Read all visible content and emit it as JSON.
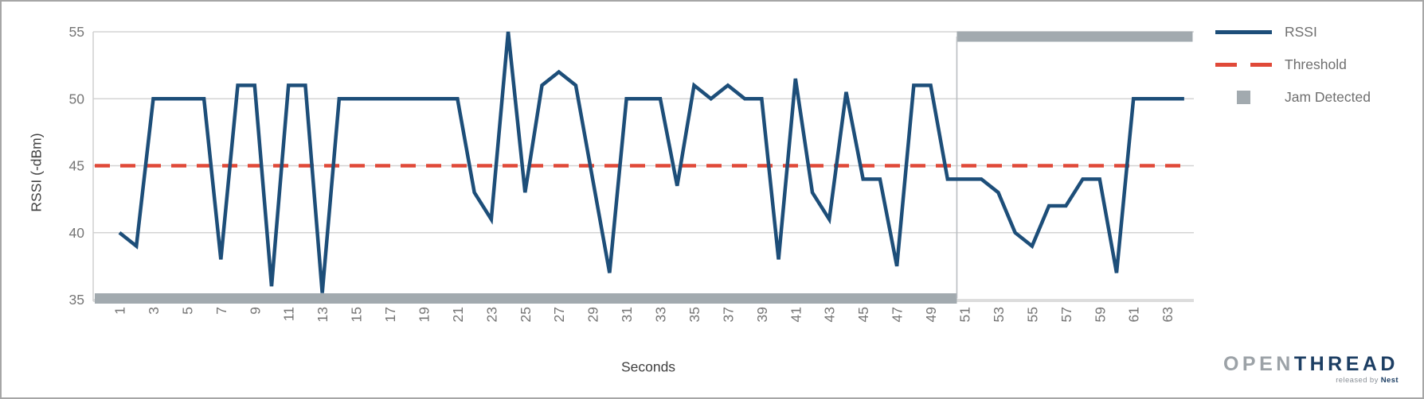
{
  "chart_data": {
    "type": "line",
    "title": "",
    "xlabel": "Seconds",
    "ylabel": "RSSI (-dBm)",
    "xlim": [
      0,
      65
    ],
    "ylim": [
      35,
      55
    ],
    "yticks": [
      35,
      40,
      45,
      50,
      55
    ],
    "xticks": [
      1,
      3,
      5,
      7,
      9,
      11,
      13,
      15,
      17,
      19,
      21,
      23,
      25,
      27,
      29,
      31,
      33,
      35,
      37,
      39,
      41,
      43,
      45,
      47,
      49,
      51,
      53,
      55,
      57,
      59,
      61,
      63
    ],
    "grid": "horizontal",
    "legend_position": "right-outside",
    "x": [
      1,
      2,
      3,
      4,
      5,
      6,
      7,
      8,
      9,
      10,
      11,
      12,
      13,
      14,
      15,
      16,
      17,
      18,
      19,
      20,
      21,
      22,
      23,
      24,
      25,
      26,
      27,
      28,
      29,
      30,
      31,
      32,
      33,
      34,
      35,
      36,
      37,
      38,
      39,
      40,
      41,
      42,
      43,
      44,
      45,
      46,
      47,
      48,
      49,
      50,
      51,
      52,
      53,
      54,
      55,
      56,
      57,
      58,
      59,
      60,
      61,
      62,
      63,
      64
    ],
    "series": [
      {
        "name": "RSSI",
        "type": "line",
        "color": "#1d4e79",
        "values": [
          40,
          39,
          50,
          50,
          50,
          50,
          38,
          51,
          51,
          36,
          51,
          51,
          35.5,
          50,
          50,
          50,
          50,
          50,
          50,
          50,
          50,
          43,
          41,
          55,
          43,
          51,
          52,
          51,
          44,
          37,
          50,
          50,
          50,
          43.5,
          51,
          50,
          51,
          50,
          50,
          38,
          51.5,
          43,
          41,
          50.5,
          44,
          44,
          37.5,
          51,
          51,
          44,
          44,
          44,
          43,
          40,
          39,
          42,
          42,
          44,
          44,
          37,
          50,
          50,
          50,
          50
        ]
      },
      {
        "name": "Threshold",
        "type": "horizontal-dashed-line",
        "color": "#e04938",
        "value": 45
      },
      {
        "name": "Jam Detected",
        "type": "step-band",
        "color": "#a2aaaf",
        "off_value": 35,
        "on_value": 55,
        "on_start_x": 51,
        "band_x_start": 0.5,
        "band_x_end": 64.5
      }
    ],
    "legend_items": [
      {
        "label": "RSSI",
        "swatch": "line",
        "color": "#1d4e79"
      },
      {
        "label": "Threshold",
        "swatch": "dashed-line",
        "color": "#e04938"
      },
      {
        "label": "Jam Detected",
        "swatch": "square",
        "color": "#a2aaaf"
      }
    ],
    "colors": {
      "gridline": "#d4d4d4",
      "axis_line": "#cfcfcf",
      "tick_label": "#757575",
      "axis_title": "#3f3f3f",
      "jam_connector": "#b9bec1"
    }
  },
  "branding": {
    "logo_part1": "OPEN",
    "logo_part2": "THREAD",
    "tagline_prefix": "released by ",
    "tagline_brand": "Nest"
  }
}
